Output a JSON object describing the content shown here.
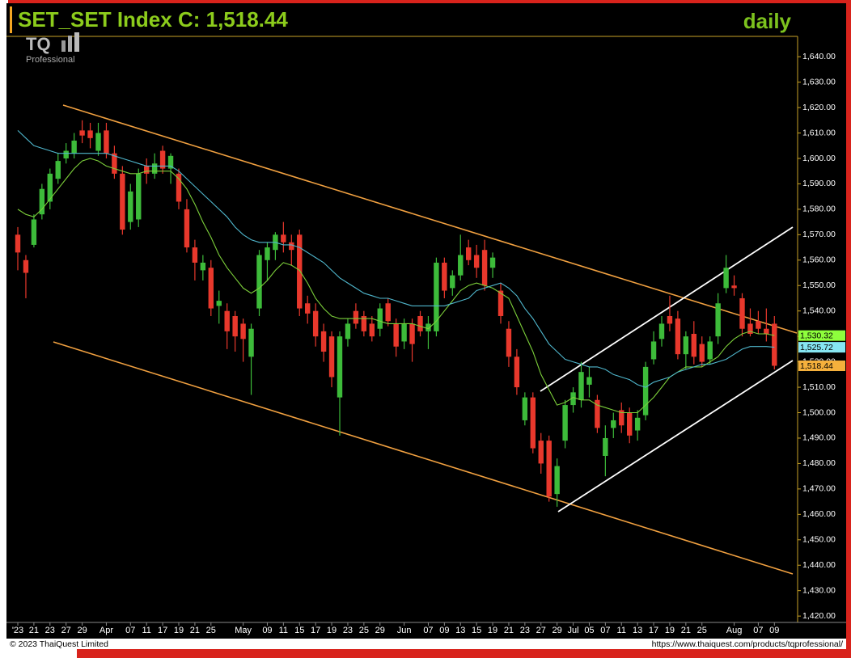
{
  "chart_data": {
    "type": "candlestick",
    "title": "SET_SET Index C: 1,518.44",
    "timeframe": "daily",
    "logo": {
      "text": "TQ",
      "subtitle": "Professional"
    },
    "copyright": "© 2023 ThaiQuest Limited",
    "url": "https://www.thaiquest.com/products/tqprofessional/",
    "categories": [
      "'23",
      null,
      "21",
      null,
      "23",
      null,
      "27",
      null,
      "29",
      null,
      null,
      "Apr",
      null,
      null,
      "07",
      null,
      "11",
      null,
      "17",
      null,
      "19",
      null,
      "21",
      null,
      "25",
      null,
      null,
      null,
      "May",
      null,
      null,
      "09",
      null,
      "11",
      null,
      "15",
      null,
      "17",
      null,
      "19",
      null,
      "23",
      null,
      "25",
      null,
      "29",
      null,
      null,
      "Jun",
      null,
      null,
      "07",
      null,
      "09",
      null,
      "13",
      null,
      "15",
      null,
      "19",
      null,
      "21",
      null,
      "23",
      null,
      "27",
      null,
      "29",
      null,
      "Jul",
      null,
      "05",
      null,
      "07",
      null,
      "11",
      null,
      "13",
      null,
      "17",
      null,
      "19",
      null,
      "21",
      null,
      "25",
      null,
      null,
      null,
      "Aug",
      null,
      null,
      "07",
      null,
      "09"
    ],
    "open": [
      1570,
      1560,
      1566,
      1578,
      1583,
      1592,
      1600,
      1602,
      1611,
      1611,
      1603,
      1611,
      1602,
      1594,
      1575,
      1576,
      1597,
      1594,
      1603,
      1596,
      1594,
      1580,
      1565,
      1556,
      1557,
      1542,
      1540,
      1538,
      1535,
      1522,
      1541,
      1560,
      1564,
      1570,
      1567,
      1570,
      1543,
      1540,
      1532,
      1530,
      1506,
      1529,
      1540,
      1538,
      1535,
      1533,
      1543,
      1535,
      1528,
      1535,
      1538,
      1532,
      1532,
      1559,
      1549,
      1554,
      1565,
      1562,
      1564,
      1557,
      1548,
      1533,
      1522,
      1497,
      1506,
      1489,
      1489,
      1468,
      1489,
      1503,
      1505,
      1511,
      1505,
      1483,
      1494,
      1501,
      1500,
      1493,
      1499,
      1521,
      1529,
      1538,
      1537,
      1523,
      1531,
      1527,
      1521,
      1530,
      1549,
      1550,
      1545,
      1535,
      1536,
      1533,
      1535
    ],
    "high": [
      1573,
      1562,
      1578,
      1590,
      1596,
      1602,
      1606,
      1610,
      1615,
      1614,
      1614,
      1614,
      1605,
      1597,
      1590,
      1596,
      1600,
      1602,
      1605,
      1602,
      1596,
      1584,
      1568,
      1562,
      1560,
      1548,
      1543,
      1540,
      1537,
      1535,
      1564,
      1567,
      1571,
      1575,
      1570,
      1572,
      1546,
      1543,
      1535,
      1532,
      1532,
      1537,
      1543,
      1540,
      1538,
      1543,
      1545,
      1537,
      1537,
      1537,
      1540,
      1538,
      1561,
      1561,
      1556,
      1570,
      1568,
      1566,
      1568,
      1563,
      1551,
      1536,
      1525,
      1508,
      1508,
      1492,
      1491,
      1482,
      1505,
      1510,
      1520,
      1518,
      1507,
      1495,
      1500,
      1504,
      1502,
      1501,
      1520,
      1532,
      1538,
      1546,
      1540,
      1532,
      1536,
      1530,
      1530,
      1547,
      1562,
      1554,
      1547,
      1541,
      1540,
      1541,
      1538
    ],
    "low": [
      1556,
      1545,
      1565,
      1576,
      1580,
      1590,
      1598,
      1600,
      1606,
      1604,
      1601,
      1600,
      1592,
      1570,
      1572,
      1573,
      1590,
      1592,
      1594,
      1590,
      1580,
      1563,
      1552,
      1552,
      1538,
      1535,
      1525,
      1524,
      1520,
      1507,
      1538,
      1552,
      1560,
      1563,
      1558,
      1538,
      1535,
      1526,
      1520,
      1510,
      1491,
      1526,
      1533,
      1530,
      1528,
      1530,
      1534,
      1522,
      1525,
      1520,
      1530,
      1525,
      1530,
      1545,
      1546,
      1552,
      1558,
      1553,
      1548,
      1553,
      1535,
      1518,
      1507,
      1495,
      1484,
      1476,
      1465,
      1463,
      1486,
      1500,
      1502,
      1506,
      1492,
      1475,
      1490,
      1492,
      1488,
      1489,
      1497,
      1519,
      1526,
      1532,
      1521,
      1517,
      1519,
      1518,
      1519,
      1527,
      1547,
      1546,
      1530,
      1530,
      1531,
      1528,
      1517
    ],
    "close": [
      1563,
      1555,
      1576,
      1588,
      1594,
      1599,
      1603,
      1607,
      1609,
      1608,
      1610,
      1602,
      1594,
      1572,
      1587,
      1594,
      1594,
      1598,
      1596,
      1601,
      1583,
      1565,
      1559,
      1559,
      1541,
      1544,
      1532,
      1530,
      1529,
      1533,
      1562,
      1565,
      1570,
      1567,
      1564,
      1541,
      1539,
      1530,
      1524,
      1514,
      1530,
      1535,
      1535,
      1532,
      1530,
      1541,
      1536,
      1526,
      1535,
      1527,
      1532,
      1535,
      1559,
      1548,
      1554,
      1562,
      1560,
      1557,
      1550,
      1561,
      1538,
      1522,
      1510,
      1506,
      1486,
      1480,
      1467,
      1479,
      1503,
      1508,
      1516,
      1514,
      1494,
      1490,
      1497,
      1495,
      1491,
      1498,
      1518,
      1528,
      1535,
      1535,
      1523,
      1530,
      1522,
      1520,
      1528,
      1543,
      1557,
      1549,
      1533,
      1531,
      1533,
      1531,
      1518.44
    ],
    "up_color": "#3dbb3a",
    "down_color": "#e8382c",
    "moving_averages": [
      {
        "color": "#7ccf3a",
        "values": [
          1580,
          1578,
          1577,
          1580,
          1584,
          1588,
          1592,
          1596,
          1599,
          1600,
          1599,
          1597,
          1596,
          1595,
          1594,
          1594,
          1595,
          1595,
          1595,
          1595,
          1592,
          1588,
          1582,
          1575,
          1569,
          1562,
          1557,
          1553,
          1549,
          1547,
          1549,
          1552,
          1556,
          1559,
          1558,
          1556,
          1551,
          1545,
          1541,
          1538,
          1537,
          1537,
          1537,
          1537,
          1537,
          1536,
          1535,
          1535,
          1535,
          1535,
          1534,
          1533,
          1536,
          1540,
          1544,
          1548,
          1550,
          1551,
          1550,
          1549,
          1547,
          1545,
          1538,
          1531,
          1524,
          1515,
          1509,
          1503,
          1504,
          1506,
          1505,
          1505,
          1503,
          1502,
          1501,
          1500,
          1500,
          1500,
          1503,
          1506,
          1510,
          1514,
          1516,
          1518,
          1518,
          1518,
          1520,
          1522,
          1526,
          1529,
          1531,
          1532,
          1531,
          1531,
          1530.32
        ]
      },
      {
        "color": "#4fb6cc",
        "values": [
          1611,
          1608,
          1605,
          1604,
          1603,
          1602,
          1602,
          1602,
          1602,
          1602,
          1602,
          1602,
          1601,
          1600,
          1599,
          1598,
          1597,
          1597,
          1597,
          1597,
          1595,
          1592,
          1589,
          1586,
          1583,
          1580,
          1577,
          1573,
          1570,
          1568,
          1567,
          1567,
          1567,
          1566,
          1566,
          1565,
          1563,
          1561,
          1559,
          1556,
          1553,
          1551,
          1549,
          1547,
          1546,
          1545,
          1545,
          1544,
          1543,
          1542,
          1542,
          1542,
          1542,
          1542,
          1543,
          1544,
          1545,
          1548,
          1549,
          1550,
          1551,
          1549,
          1546,
          1541,
          1537,
          1532,
          1527,
          1524,
          1521,
          1520,
          1519,
          1518,
          1518,
          1517,
          1515,
          1514,
          1513,
          1511,
          1510,
          1512,
          1513,
          1514,
          1516,
          1517,
          1518,
          1519,
          1519,
          1520,
          1521,
          1523,
          1525,
          1526,
          1526,
          1526,
          1525.72
        ]
      }
    ],
    "price_tags": [
      {
        "value": 1530.32,
        "label": "1,530.32",
        "color": "#8eff3c"
      },
      {
        "value": 1525.72,
        "label": "1,525.72",
        "color": "#86e6f2"
      },
      {
        "value": 1518.44,
        "label": "1,518.44",
        "color": "#f5b03c"
      }
    ],
    "ylim": [
      1417.5,
      1648
    ],
    "yticks": [
      {
        "value": 1420,
        "label": "1,420.00"
      },
      {
        "value": 1430,
        "label": "1,430.00"
      },
      {
        "value": 1440,
        "label": "1,440.00"
      },
      {
        "value": 1450,
        "label": "1,450.00"
      },
      {
        "value": 1460,
        "label": "1,460.00"
      },
      {
        "value": 1470,
        "label": "1,470.00"
      },
      {
        "value": 1480,
        "label": "1,480.00"
      },
      {
        "value": 1490,
        "label": "1,490.00"
      },
      {
        "value": 1500,
        "label": "1,500.00"
      },
      {
        "value": 1510,
        "label": "1,510.00"
      },
      {
        "value": 1520,
        "label": "1,520.00"
      },
      {
        "value": 1530,
        "label": "1,530.00"
      },
      {
        "value": 1540,
        "label": "1,540.00"
      },
      {
        "value": 1550,
        "label": "1,550.00"
      },
      {
        "value": 1560,
        "label": "1,560.00"
      },
      {
        "value": 1570,
        "label": "1,570.00"
      },
      {
        "value": 1580,
        "label": "1,580.00"
      },
      {
        "value": 1590,
        "label": "1,590.00"
      },
      {
        "value": 1600,
        "label": "1,600.00"
      },
      {
        "value": 1610,
        "label": "1,610.00"
      },
      {
        "value": 1620,
        "label": "1,620.00"
      },
      {
        "value": 1630,
        "label": "1,630.00"
      },
      {
        "value": 1640,
        "label": "1,640.00"
      }
    ],
    "grid": false
  }
}
